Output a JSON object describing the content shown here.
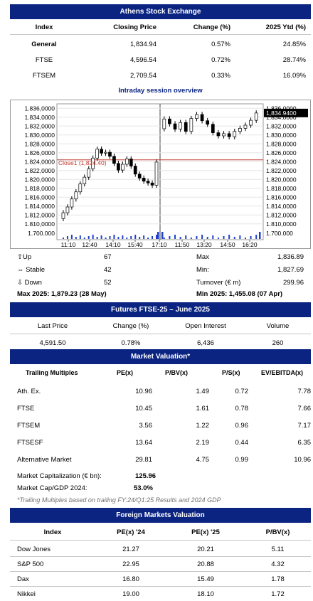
{
  "exchange": {
    "title": "Athens Stock Exchange",
    "headers": [
      "Index",
      "Closing Price",
      "Change (%)",
      "2025 Ytd (%)"
    ],
    "rows": [
      {
        "name": "General",
        "close": "1,834.94",
        "change": "0.57%",
        "ytd": "24.85%"
      },
      {
        "name": "FTSE",
        "close": "4,596.54",
        "change": "0.72%",
        "ytd": "28.74%"
      },
      {
        "name": "FTSEM",
        "close": "2,709.54",
        "change": "0.33%",
        "ytd": "16.09%"
      }
    ]
  },
  "intraday": {
    "title": "Intraday session overview",
    "close_label": "Close1 (1,824.40)",
    "last_label": "1,834.9400",
    "volume_label": "1.700.000",
    "colors": {
      "up": "#ffffff",
      "down": "#000000",
      "close_line": "#c0392b",
      "volume": "#1f3fcc",
      "last_bg": "#000000"
    }
  },
  "chart_data": {
    "type": "candlestick",
    "x_ticks": [
      "11:10",
      "12:40",
      "14:10",
      "15:40",
      "17:10",
      "11:50",
      "13:20",
      "14:50",
      "16:20"
    ],
    "y_ticks": [
      "1.810,0000",
      "1.812,0000",
      "1.814,0000",
      "1.816,0000",
      "1.818,0000",
      "1.820,0000",
      "1.822,0000",
      "1.824,0000",
      "1.826,0000",
      "1.828,0000",
      "1.830,0000",
      "1.832,0000",
      "1.834,0000",
      "1.836,0000"
    ],
    "ylim": [
      1809,
      1837
    ],
    "previous_close": 1824.4,
    "last": 1834.94,
    "session1_close": [
      1812.5,
      1813.8,
      1815.6,
      1817.2,
      1819.0,
      1820.5,
      1822.4,
      1824.8,
      1826.8,
      1825.9,
      1826.1,
      1825.2,
      1823.6,
      1822.1,
      1823.4,
      1824.6,
      1823.0,
      1821.2,
      1820.3,
      1819.6,
      1819.2,
      1818.7,
      1823.9
    ],
    "session2_close": [
      1833.6,
      1832.5,
      1831.3,
      1832.8,
      1830.8,
      1833.7,
      1834.6,
      1833.2,
      1832.4,
      1830.5,
      1829.8,
      1830.3,
      1829.6,
      1830.8,
      1831.5,
      1832.2,
      1833.3,
      1834.94
    ],
    "grid": true
  },
  "stats": {
    "up_label": "Up",
    "up": "67",
    "stable_label": "Stable",
    "stable": "42",
    "down_label": "Down",
    "down": "52",
    "max_label": "Max",
    "max": "1,836.89",
    "min_label": "Min:",
    "min": "1,827.69",
    "turnover_label": "Turnover (€ m)",
    "turnover": "299.96",
    "max2025": "Max 2025: 1,879.23 (28 May)",
    "min2025": "Min 2025:  1,455.08 (07 Apr)"
  },
  "futures": {
    "title": "Futures FTSE-25 – June 2025",
    "headers": [
      "Last Price",
      "Change (%)",
      "Open Interest",
      "Volume"
    ],
    "values": [
      "4,591.50",
      "0.78%",
      "6,436",
      "260"
    ]
  },
  "valuation": {
    "title": "Market Valuation*",
    "headers": [
      "Trailing Multiples",
      "PE(x)",
      "P/BV(x)",
      "P/S(x)",
      "EV/EBITDA(x)"
    ],
    "rows": [
      [
        "Ath. Ex.",
        "10.96",
        "1.49",
        "0.72",
        "7.78"
      ],
      [
        "FTSE",
        "10.45",
        "1.61",
        "0.78",
        "7.66"
      ],
      [
        "FTSEM",
        "3.56",
        "1.22",
        "0.96",
        "7.17"
      ],
      [
        "FTSESF",
        "13.64",
        "2.19",
        "0.44",
        "6.35"
      ],
      [
        "Alternative Market",
        "29.81",
        "4.75",
        "0.99",
        "10.96"
      ]
    ],
    "cap_label": "Market Capitalization (€ bn):",
    "cap": "125.96",
    "gdp_label": "Market Cap/GDP 2024:",
    "gdp": "53.0%",
    "note": "*Trailing Multiples based on trailing FY:24/Q1:25 Results and 2024 GDP"
  },
  "foreign": {
    "title": "Foreign Markets Valuation",
    "headers": [
      "Index",
      "PE(x) '24",
      "PE(x) '25",
      "P/BV(x)"
    ],
    "rows": [
      [
        "Dow Jones",
        "21.27",
        "20.21",
        "5.11"
      ],
      [
        "S&P 500",
        "22.95",
        "20.88",
        "4.32"
      ],
      [
        "Dax",
        "16.80",
        "15.49",
        "1.78"
      ],
      [
        "Nikkei",
        "19.00",
        "18.10",
        "1.72"
      ]
    ]
  }
}
